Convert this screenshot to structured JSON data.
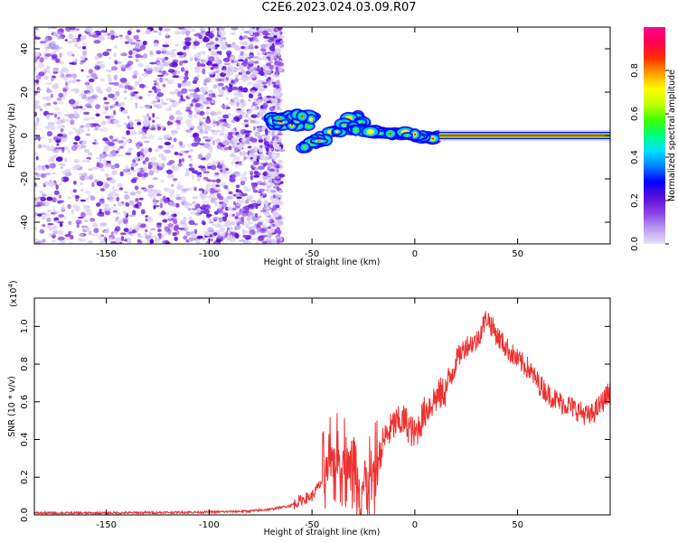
{
  "title": "C2E6.2023.024.03.09.R07",
  "chart_data": [
    {
      "type": "heatmap",
      "xlabel": "Height of straight line (km)",
      "ylabel": "Frequency (Hz)",
      "xlim": [
        -185,
        95
      ],
      "ylim": [
        -50,
        50
      ],
      "xticks": [
        -150,
        -100,
        -50,
        0,
        50
      ],
      "yticks": [
        -40,
        -20,
        0,
        20,
        40
      ],
      "colorbar": {
        "label": "Normalized spectral amplitude",
        "range": [
          0.0,
          1.0
        ],
        "ticks": [
          0.0,
          0.2,
          0.4,
          0.6,
          0.8
        ],
        "colormap": [
          "#e8e0f8",
          "#b79cf0",
          "#8b3fe8",
          "#5a10d8",
          "#0000ff",
          "#0080ff",
          "#00e0ff",
          "#00ff80",
          "#40ff00",
          "#c0ff00",
          "#ffff00",
          "#ffa000",
          "#ff3000",
          "#ff0050",
          "#ff0090"
        ]
      },
      "regions": [
        {
          "description_x": [
            -185,
            -68
          ],
          "freq_range": [
            -50,
            50
          ],
          "amplitude_range": [
            0.0,
            0.15
          ]
        },
        {
          "x": [
            -70,
            -50
          ],
          "freq": [
            4,
            10
          ],
          "amplitude": 0.6
        },
        {
          "x": [
            -55,
            -25
          ],
          "freq": [
            -4,
            12
          ],
          "amplitude": 0.5
        },
        {
          "x": [
            -30,
            12
          ],
          "freq": [
            -3,
            3
          ],
          "amplitude": 0.7
        },
        {
          "x": [
            12,
            95
          ],
          "freq": [
            0,
            0
          ],
          "amplitude": 1.0
        }
      ]
    },
    {
      "type": "line",
      "xlabel": "Height of straight line (km)",
      "ylabel": "SNR (10 * v/v)",
      "yscale_label": "(x10",
      "yscale_exp": "4",
      "yscale_close": ")",
      "xlim": [
        -185,
        95
      ],
      "ylim": [
        0.0,
        1.15
      ],
      "xticks": [
        -150,
        -100,
        -50,
        0,
        50
      ],
      "yticks": [
        0.0,
        0.2,
        0.4,
        0.6,
        0.8,
        1.0
      ],
      "color": "#ee3030",
      "x": [
        -185,
        -150,
        -100,
        -80,
        -70,
        -60,
        -55,
        -50,
        -45,
        -40,
        -35,
        -30,
        -25,
        -20,
        -15,
        -10,
        -5,
        0,
        5,
        10,
        15,
        20,
        25,
        30,
        35,
        40,
        45,
        50,
        55,
        60,
        65,
        70,
        75,
        80,
        85,
        90,
        95
      ],
      "y": [
        0.01,
        0.01,
        0.015,
        0.02,
        0.03,
        0.05,
        0.08,
        0.1,
        0.18,
        0.28,
        0.3,
        0.25,
        0.15,
        0.2,
        0.4,
        0.48,
        0.5,
        0.42,
        0.55,
        0.62,
        0.66,
        0.82,
        0.9,
        0.92,
        1.05,
        0.95,
        0.88,
        0.82,
        0.78,
        0.7,
        0.64,
        0.6,
        0.58,
        0.55,
        0.52,
        0.58,
        0.66
      ]
    }
  ]
}
